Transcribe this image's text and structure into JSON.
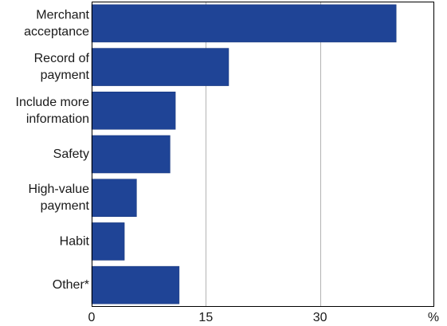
{
  "chart_data": {
    "type": "bar",
    "orientation": "horizontal",
    "categories": [
      [
        "Merchant",
        "acceptance"
      ],
      [
        "Record of",
        "payment"
      ],
      [
        "Include more",
        "information"
      ],
      [
        "Safety"
      ],
      [
        "High-value",
        "payment"
      ],
      [
        "Habit"
      ],
      [
        "Other*"
      ]
    ],
    "values": [
      40,
      18,
      11,
      10.3,
      5.9,
      4.3,
      11.5
    ],
    "xlim": [
      0,
      45
    ],
    "xticks": [
      0,
      15,
      30
    ],
    "x_unit_label": "%",
    "grid": "vertical",
    "colors": {
      "bar": "#1f4496",
      "bar_edge": "#16357a",
      "grid": "#b3b3b3",
      "frame": "#000000"
    }
  }
}
